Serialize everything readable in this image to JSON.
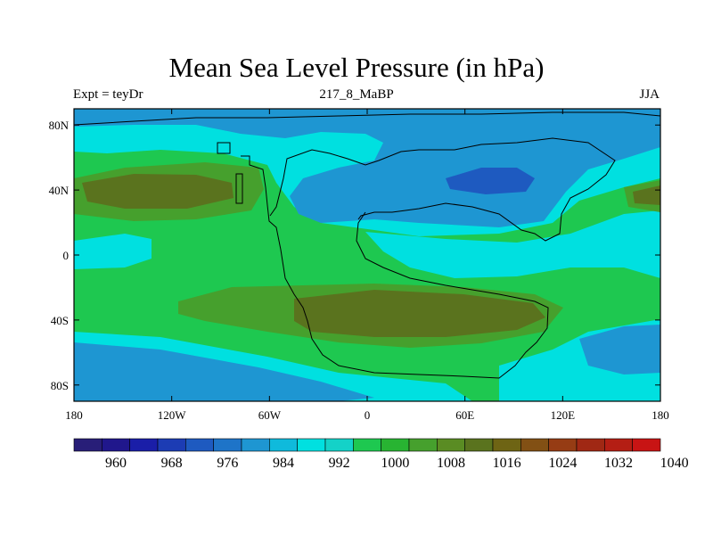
{
  "title": "Mean Sea Level Pressure (in hPa)",
  "left_string": "Expt = teyDr",
  "center_string": "217_8_MaBP",
  "right_string": "JJA",
  "lat_ticks": [
    "80N",
    "40N",
    "0",
    "40S",
    "80S"
  ],
  "lon_ticks": [
    "180",
    "120W",
    "60W",
    "0",
    "60E",
    "120E",
    "180"
  ],
  "colorbar": {
    "labels": [
      "960",
      "968",
      "976",
      "984",
      "992",
      "1000",
      "1008",
      "1016",
      "1024",
      "1032",
      "1040"
    ],
    "colors": [
      "#281e78",
      "#20178c",
      "#1a1ea8",
      "#1c3cb4",
      "#1e5ac0",
      "#1e74c8",
      "#1e96d2",
      "#0fbadc",
      "#00e0e0",
      "#14d2c8",
      "#1ec850",
      "#28b432",
      "#46a02d",
      "#5a8c23",
      "#5a731e",
      "#6e6414",
      "#825014",
      "#963c14",
      "#a02814",
      "#b41e14",
      "#c81414"
    ]
  },
  "field_colors": {
    "low_deep": "#1e5ac0",
    "low": "#1e96d2",
    "mid_low": "#0fbadc",
    "mid": "#00e0e0",
    "mid_high": "#1ec850",
    "high": "#46a02d",
    "very_high": "#5a731e"
  }
}
